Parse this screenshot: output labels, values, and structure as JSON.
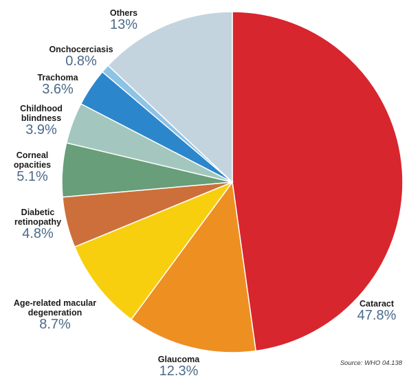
{
  "chart_data": {
    "type": "pie",
    "title": "",
    "start": "12 o'clock, clockwise",
    "slices": [
      {
        "label_lines": [
          "Cataract"
        ],
        "value": 47.8,
        "value_label": "47.8%",
        "color": "#d7262e"
      },
      {
        "label_lines": [
          "Glaucoma"
        ],
        "value": 12.3,
        "value_label": "12.3%",
        "color": "#ee8f22"
      },
      {
        "label_lines": [
          "Age-related macular",
          "degeneration"
        ],
        "value": 8.7,
        "value_label": "8.7%",
        "color": "#f7cf0e"
      },
      {
        "label_lines": [
          "Diabetic",
          "retinopathy"
        ],
        "value": 4.8,
        "value_label": "4.8%",
        "color": "#cd6f3b"
      },
      {
        "label_lines": [
          "Corneal",
          "opacities"
        ],
        "value": 5.1,
        "value_label": "5.1%",
        "color": "#689e79"
      },
      {
        "label_lines": [
          "Childhood",
          "blindness"
        ],
        "value": 3.9,
        "value_label": "3.9%",
        "color": "#a3c7be"
      },
      {
        "label_lines": [
          "Trachoma"
        ],
        "value": 3.6,
        "value_label": "3.6%",
        "color": "#2c86cc"
      },
      {
        "label_lines": [
          "Onchocerciasis"
        ],
        "value": 0.8,
        "value_label": "0.8%",
        "color": "#8cc3e6"
      },
      {
        "label_lines": [
          "Others"
        ],
        "value": 13,
        "value_label": "13%",
        "color": "#c3d4df"
      }
    ],
    "source": "Source: WHO 04.138"
  }
}
